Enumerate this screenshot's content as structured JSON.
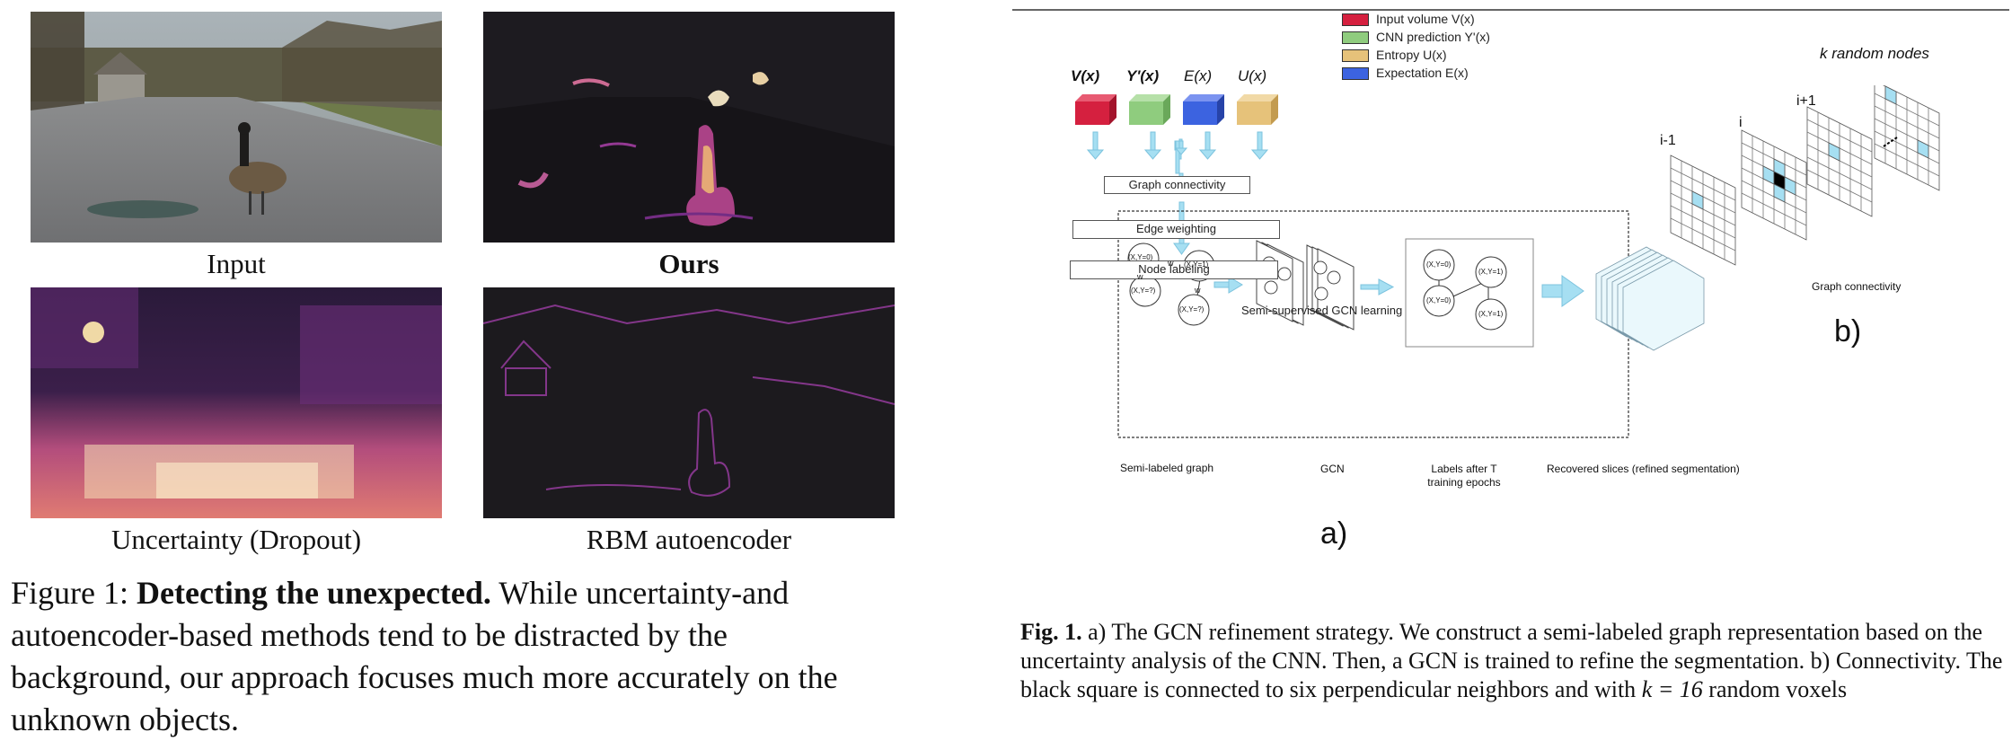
{
  "left_figure": {
    "panels": [
      {
        "label": "Input"
      },
      {
        "label": "Ours"
      },
      {
        "label": "Uncertainty (Dropout)"
      },
      {
        "label": "RBM autoencoder"
      }
    ],
    "caption": {
      "prefix": "Figure 1:",
      "title": "Detecting the unexpected.",
      "body": "While uncertainty-and autoencoder-based methods tend to be distracted by the background, our approach focuses much more accurately on the unknown objects."
    }
  },
  "right_figure": {
    "legend": [
      {
        "label": "Input volume V(x)",
        "color": "#d5203f"
      },
      {
        "label": "CNN prediction Y'(x)",
        "color": "#8fcc7e"
      },
      {
        "label": "Entropy U(x)",
        "color": "#e6c27a"
      },
      {
        "label": "Expectation E(x)",
        "color": "#3c63e0"
      }
    ],
    "volumes": [
      {
        "label": "V(x)",
        "color": "#d5203f"
      },
      {
        "label": "Y'(x)",
        "color": "#8fcc7e"
      },
      {
        "label": "E(x)",
        "color": "#3c63e0"
      },
      {
        "label": "U(x)",
        "color": "#e6c27a"
      }
    ],
    "steps": [
      "Graph connectivity",
      "Edge weighting",
      "Node labeling"
    ],
    "gcn_box_title": "Semi-supervised GCN learning",
    "semi_graph_label": "Semi-labeled graph",
    "semi_graph_nodes": [
      "(X,Y=0)",
      "(X,Y=1)",
      "(X,Y=?)",
      "(X,Y=?)"
    ],
    "edge_label": "w",
    "gcn_label": "GCN",
    "labels_after": "Labels after T training epochs",
    "labels_nodes": [
      "(X,Y=0)",
      "(X,Y=1)",
      "(X,Y=0)",
      "(X,Y=1)"
    ],
    "recovered_label": "Recovered slices (refined segmentation)",
    "panel_a_label": "a)",
    "panel_b_label": "b)",
    "grid_labels": [
      "i-1",
      "i",
      "i+1"
    ],
    "k_label": "k random nodes",
    "graph_connectivity_label": "Graph connectivity",
    "caption": {
      "prefix": "Fig. 1.",
      "body": "a) The GCN refinement strategy. We construct a semi-labeled graph representation based on the uncertainty analysis of the CNN. Then, a GCN is trained to refine the segmentation. b) Connectivity. The black square is connected to six perpendicular neighbors and with",
      "math": "k = 16",
      "tail": "random voxels"
    },
    "accent_color": "#a6dff2"
  }
}
